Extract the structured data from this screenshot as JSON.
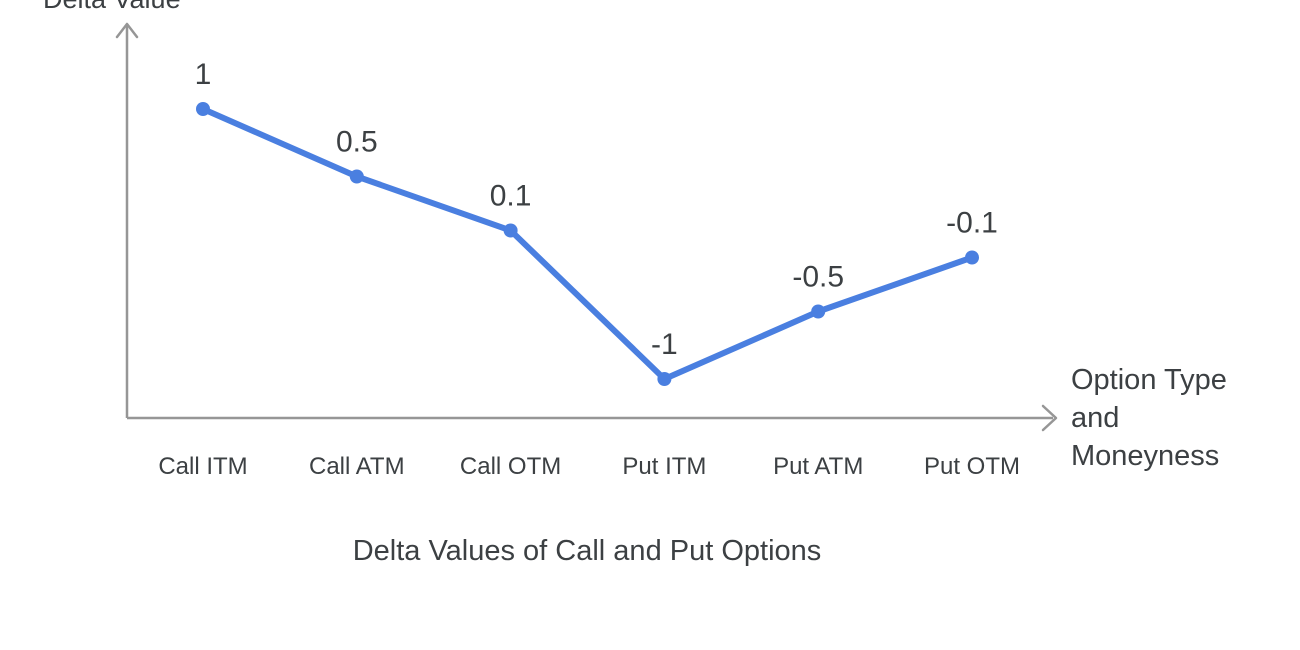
{
  "chart": {
    "title": "Delta Values of Call and Put Options",
    "y_axis_label": "Delta Value",
    "x_axis_label": "Option Type and Moneyness"
  },
  "colors": {
    "line": "#4a7fe0",
    "point": "#4a7fe0",
    "axis": "#969696",
    "text": "#3c4043",
    "background": "#ffffff"
  },
  "chart_data": {
    "type": "line",
    "title": "Delta Values of Call and Put Options",
    "xlabel": "Option Type and Moneyness",
    "ylabel": "Delta Value",
    "categories": [
      "Call ITM",
      "Call ATM",
      "Call OTM",
      "Put ITM",
      "Put ATM",
      "Put OTM"
    ],
    "values": [
      1,
      0.5,
      0.1,
      -1,
      -0.5,
      -0.1
    ],
    "data_labels": [
      "1",
      "0.5",
      "0.1",
      "-1",
      "-0.5",
      "-0.1"
    ],
    "ylim": [
      -1.29,
      1.63
    ],
    "grid": false,
    "legend": false
  }
}
